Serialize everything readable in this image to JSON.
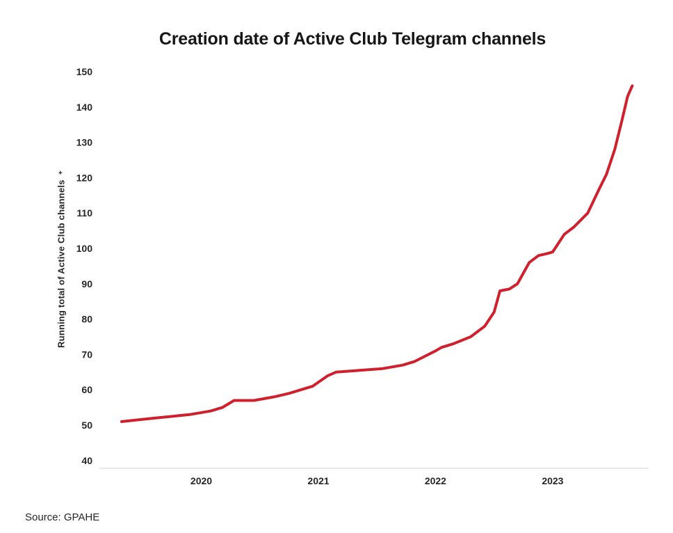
{
  "page": {
    "background": "#ffffff"
  },
  "source": {
    "text": "Source: GPAHE"
  },
  "y_axis": {
    "label": "Running total of Active Club channels",
    "icon": "✦"
  },
  "chart_data": {
    "type": "line",
    "title": "Creation date of Active Club Telegram channels",
    "xlabel": "",
    "ylabel": "Running total of Active Club channels",
    "x_ticks": [
      2020,
      2021,
      2022,
      2023
    ],
    "y_ticks": [
      40,
      50,
      60,
      70,
      80,
      90,
      100,
      110,
      120,
      130,
      140,
      150
    ],
    "xlim": [
      2019.13,
      2023.82
    ],
    "ylim": [
      37.8,
      150
    ],
    "grid": false,
    "legend": "none",
    "line_color": "#d0202e",
    "series": [
      {
        "name": "Running total of Active Club channels",
        "points": [
          [
            2019.32,
            51
          ],
          [
            2019.6,
            52
          ],
          [
            2019.9,
            53
          ],
          [
            2020.08,
            54
          ],
          [
            2020.18,
            55
          ],
          [
            2020.28,
            57
          ],
          [
            2020.45,
            57
          ],
          [
            2020.62,
            58
          ],
          [
            2020.75,
            59
          ],
          [
            2020.85,
            60
          ],
          [
            2020.95,
            61
          ],
          [
            2021.08,
            64
          ],
          [
            2021.15,
            65
          ],
          [
            2021.35,
            65.5
          ],
          [
            2021.55,
            66
          ],
          [
            2021.72,
            67
          ],
          [
            2021.82,
            68
          ],
          [
            2022.0,
            71
          ],
          [
            2022.05,
            72
          ],
          [
            2022.15,
            73
          ],
          [
            2022.3,
            75
          ],
          [
            2022.42,
            78
          ],
          [
            2022.5,
            82
          ],
          [
            2022.55,
            88
          ],
          [
            2022.63,
            88.5
          ],
          [
            2022.7,
            90
          ],
          [
            2022.8,
            96
          ],
          [
            2022.88,
            98
          ],
          [
            2022.95,
            98.5
          ],
          [
            2023.0,
            99
          ],
          [
            2023.1,
            104
          ],
          [
            2023.18,
            106
          ],
          [
            2023.3,
            110
          ],
          [
            2023.4,
            117
          ],
          [
            2023.46,
            121
          ],
          [
            2023.53,
            128
          ],
          [
            2023.59,
            136
          ],
          [
            2023.64,
            143
          ],
          [
            2023.68,
            146
          ]
        ]
      }
    ]
  }
}
